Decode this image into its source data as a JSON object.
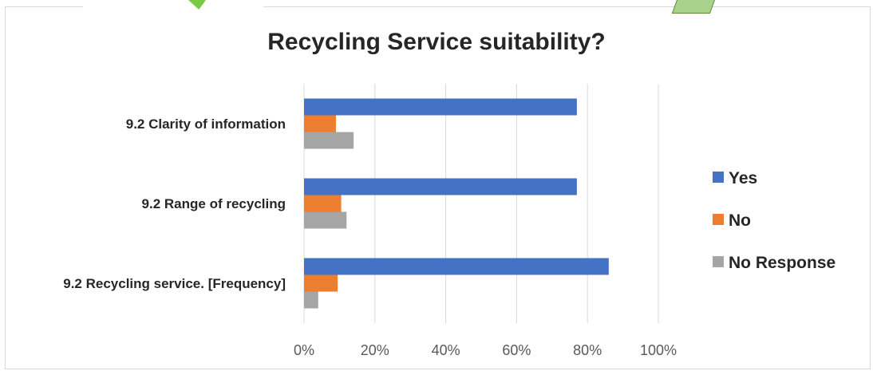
{
  "chart_data": {
    "type": "bar",
    "orientation": "horizontal",
    "title": "Recycling Service suitability?",
    "categories": [
      "9.2 Clarity of information",
      "9.2 Range of recycling",
      "9.2 Recycling service. [Frequency]"
    ],
    "series": [
      {
        "name": "Yes",
        "color": "#4472c4",
        "values": [
          77,
          77,
          86
        ]
      },
      {
        "name": "No",
        "color": "#ed7d31",
        "values": [
          9,
          10.5,
          9.5
        ]
      },
      {
        "name": "No Response",
        "color": "#a5a5a5",
        "values": [
          14,
          12,
          4
        ]
      }
    ],
    "xlim": [
      0,
      100
    ],
    "xticks": [
      "0%",
      "20%",
      "40%",
      "60%",
      "80%",
      "100%"
    ],
    "grid": true,
    "legend_position": "right"
  }
}
